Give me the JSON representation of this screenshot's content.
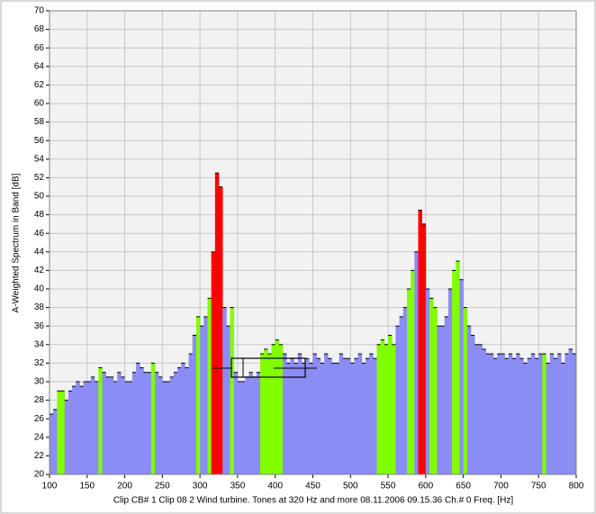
{
  "chart_data": {
    "type": "histogram",
    "ylabel": "A-Weighted Spectrum in Band [dB]",
    "xlabel": "Clip  CB# 1 Clip 08 2 Wind turbine. Tones at 320 Hz and more  08.11.2006  09.15.36  Ch.# 0  Freq.  [Hz]",
    "bins": [
      100,
      105,
      110,
      115,
      120,
      125,
      130,
      135,
      140,
      145,
      150,
      155,
      160,
      165,
      170,
      175,
      180,
      185,
      190,
      195,
      200,
      205,
      210,
      215,
      220,
      225,
      230,
      235,
      240,
      245,
      250,
      255,
      260,
      265,
      270,
      275,
      280,
      285,
      290,
      295,
      300,
      305,
      310,
      315,
      320,
      325,
      330,
      335,
      340,
      345,
      350,
      355,
      360,
      365,
      370,
      375,
      380,
      385,
      390,
      395,
      400,
      405,
      410,
      415,
      420,
      425,
      430,
      435,
      440,
      445,
      450,
      455,
      460,
      465,
      470,
      475,
      480,
      485,
      490,
      495,
      500,
      505,
      510,
      515,
      520,
      525,
      530,
      535,
      540,
      545,
      550,
      555,
      560,
      565,
      570,
      575,
      580,
      585,
      590,
      595,
      600,
      605,
      610,
      615,
      620,
      625,
      630,
      635,
      640,
      645,
      650,
      655,
      660,
      665,
      670,
      675,
      680,
      685,
      690,
      695,
      700,
      705,
      710,
      715,
      720,
      725,
      730,
      735,
      740,
      745,
      750,
      755,
      760,
      765,
      770,
      775,
      780,
      785,
      790,
      795,
      800
    ],
    "values": [
      26.5,
      27,
      29,
      29,
      28,
      29,
      29.5,
      30,
      29.5,
      30,
      30,
      30.5,
      30,
      31.5,
      31,
      30.5,
      30.5,
      30,
      31,
      30.5,
      30,
      30,
      31,
      32,
      31.5,
      31,
      31,
      32,
      31,
      30.5,
      30,
      30,
      30.5,
      31,
      31.5,
      32,
      31.5,
      33,
      35,
      37,
      36,
      37,
      39,
      44,
      52.5,
      51,
      38,
      36,
      38,
      31,
      30,
      30,
      30.5,
      31,
      30.5,
      31,
      33,
      33.5,
      33,
      34,
      34.5,
      34,
      33,
      32,
      32.5,
      32,
      33,
      32,
      32.5,
      32,
      33,
      32.5,
      32,
      33,
      32.5,
      32,
      32,
      33,
      32.5,
      32.5,
      32,
      32.5,
      33,
      32,
      32.5,
      33,
      32.5,
      34,
      34.5,
      34,
      35,
      34,
      36,
      37,
      38,
      40,
      42,
      44,
      48.5,
      47,
      40,
      39,
      38,
      36,
      36,
      37,
      40,
      42,
      43,
      41,
      38,
      36,
      35,
      34,
      34,
      33.5,
      33,
      33,
      32.5,
      33,
      33,
      32.5,
      33,
      32.5,
      33,
      32.5,
      32,
      32.5,
      33,
      32.5,
      33,
      33,
      32,
      33,
      32.5,
      33,
      32,
      33,
      33.5,
      33
    ],
    "colors": [
      "#8c8cf5",
      "#8c8cf5",
      "#80ff00",
      "#80ff00",
      "#8c8cf5",
      "#8c8cf5",
      "#8c8cf5",
      "#8c8cf5",
      "#8c8cf5",
      "#8c8cf5",
      "#8c8cf5",
      "#8c8cf5",
      "#8c8cf5",
      "#80ff00",
      "#8c8cf5",
      "#8c8cf5",
      "#8c8cf5",
      "#8c8cf5",
      "#8c8cf5",
      "#8c8cf5",
      "#8c8cf5",
      "#8c8cf5",
      "#8c8cf5",
      "#8c8cf5",
      "#8c8cf5",
      "#8c8cf5",
      "#8c8cf5",
      "#80ff00",
      "#8c8cf5",
      "#8c8cf5",
      "#8c8cf5",
      "#8c8cf5",
      "#8c8cf5",
      "#8c8cf5",
      "#8c8cf5",
      "#8c8cf5",
      "#8c8cf5",
      "#8c8cf5",
      "#8c8cf5",
      "#80ff00",
      "#8c8cf5",
      "#8c8cf5",
      "#80ff00",
      "#ff0000",
      "#ff0000",
      "#ff0000",
      "#8c8cf5",
      "#8c8cf5",
      "#80ff00",
      "#8c8cf5",
      "#8c8cf5",
      "#8c8cf5",
      "#8c8cf5",
      "#8c8cf5",
      "#8c8cf5",
      "#8c8cf5",
      "#80ff00",
      "#80ff00",
      "#80ff00",
      "#80ff00",
      "#80ff00",
      "#80ff00",
      "#8c8cf5",
      "#8c8cf5",
      "#8c8cf5",
      "#8c8cf5",
      "#8c8cf5",
      "#8c8cf5",
      "#8c8cf5",
      "#8c8cf5",
      "#8c8cf5",
      "#8c8cf5",
      "#8c8cf5",
      "#8c8cf5",
      "#8c8cf5",
      "#8c8cf5",
      "#8c8cf5",
      "#8c8cf5",
      "#8c8cf5",
      "#8c8cf5",
      "#8c8cf5",
      "#8c8cf5",
      "#8c8cf5",
      "#8c8cf5",
      "#8c8cf5",
      "#8c8cf5",
      "#8c8cf5",
      "#80ff00",
      "#80ff00",
      "#80ff00",
      "#80ff00",
      "#80ff00",
      "#8c8cf5",
      "#8c8cf5",
      "#8c8cf5",
      "#80ff00",
      "#80ff00",
      "#8c8cf5",
      "#ff0000",
      "#ff0000",
      "#8c8cf5",
      "#80ff00",
      "#80ff00",
      "#8c8cf5",
      "#8c8cf5",
      "#8c8cf5",
      "#8c8cf5",
      "#80ff00",
      "#80ff00",
      "#8c8cf5",
      "#80ff00",
      "#8c8cf5",
      "#8c8cf5",
      "#8c8cf5",
      "#8c8cf5",
      "#8c8cf5",
      "#8c8cf5",
      "#8c8cf5",
      "#8c8cf5",
      "#8c8cf5",
      "#8c8cf5",
      "#8c8cf5",
      "#8c8cf5",
      "#8c8cf5",
      "#8c8cf5",
      "#8c8cf5",
      "#8c8cf5",
      "#8c8cf5",
      "#8c8cf5",
      "#8c8cf5",
      "#8c8cf5",
      "#80ff00",
      "#8c8cf5",
      "#8c8cf5",
      "#8c8cf5",
      "#8c8cf5",
      "#8c8cf5",
      "#8c8cf5",
      "#8c8cf5",
      "#8c8cf5"
    ],
    "xlim": [
      100,
      800
    ],
    "xticks": [
      100,
      150,
      200,
      250,
      300,
      350,
      400,
      450,
      500,
      550,
      600,
      650,
      700,
      750,
      800
    ],
    "ylim": [
      20,
      70
    ],
    "yticks": [
      20,
      22,
      24,
      26,
      28,
      30,
      32,
      34,
      36,
      38,
      40,
      42,
      44,
      46,
      48,
      50,
      52,
      54,
      56,
      58,
      60,
      62,
      64,
      66,
      68,
      70
    ],
    "grid": true
  }
}
